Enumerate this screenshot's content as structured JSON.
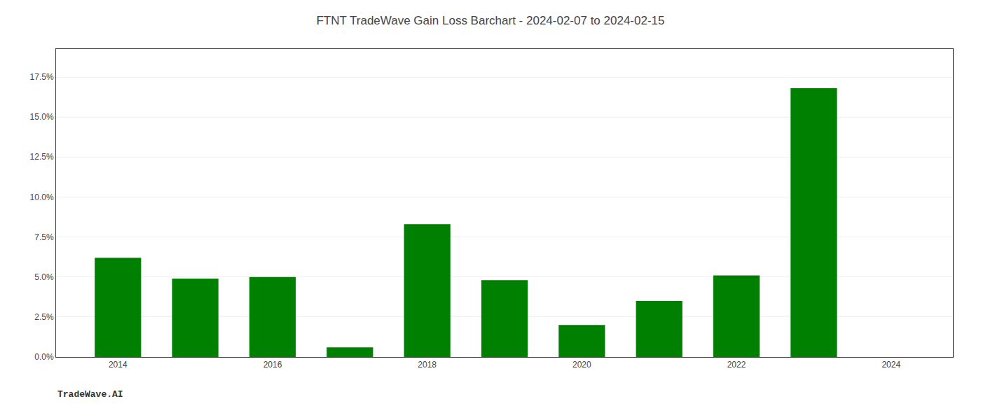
{
  "chart_data": {
    "type": "bar",
    "title": "FTNT TradeWave Gain Loss Barchart - 2024-02-07 to 2024-02-15",
    "annotations": [
      "TradeWave.AI"
    ],
    "x": [
      2014,
      2015,
      2016,
      2017,
      2018,
      2019,
      2020,
      2021,
      2022,
      2023
    ],
    "values": [
      0.062,
      0.049,
      0.05,
      0.006,
      0.083,
      0.048,
      0.02,
      0.035,
      0.051,
      0.168
    ],
    "color": "#008000",
    "xlim": [
      2013.2,
      2024.8
    ],
    "xticks": [
      2014,
      2016,
      2018,
      2020,
      2022,
      2024
    ],
    "ylim": [
      0,
      0.1925
    ],
    "yticks": [
      {
        "value": 0.0,
        "label": "0.0%"
      },
      {
        "value": 0.025,
        "label": "2.5%"
      },
      {
        "value": 0.05,
        "label": "5.0%"
      },
      {
        "value": 0.075,
        "label": "7.5%"
      },
      {
        "value": 0.1,
        "label": "10.0%"
      },
      {
        "value": 0.125,
        "label": "12.5%"
      },
      {
        "value": 0.15,
        "label": "15.0%"
      },
      {
        "value": 0.175,
        "label": "17.5%"
      }
    ],
    "grid": true
  }
}
